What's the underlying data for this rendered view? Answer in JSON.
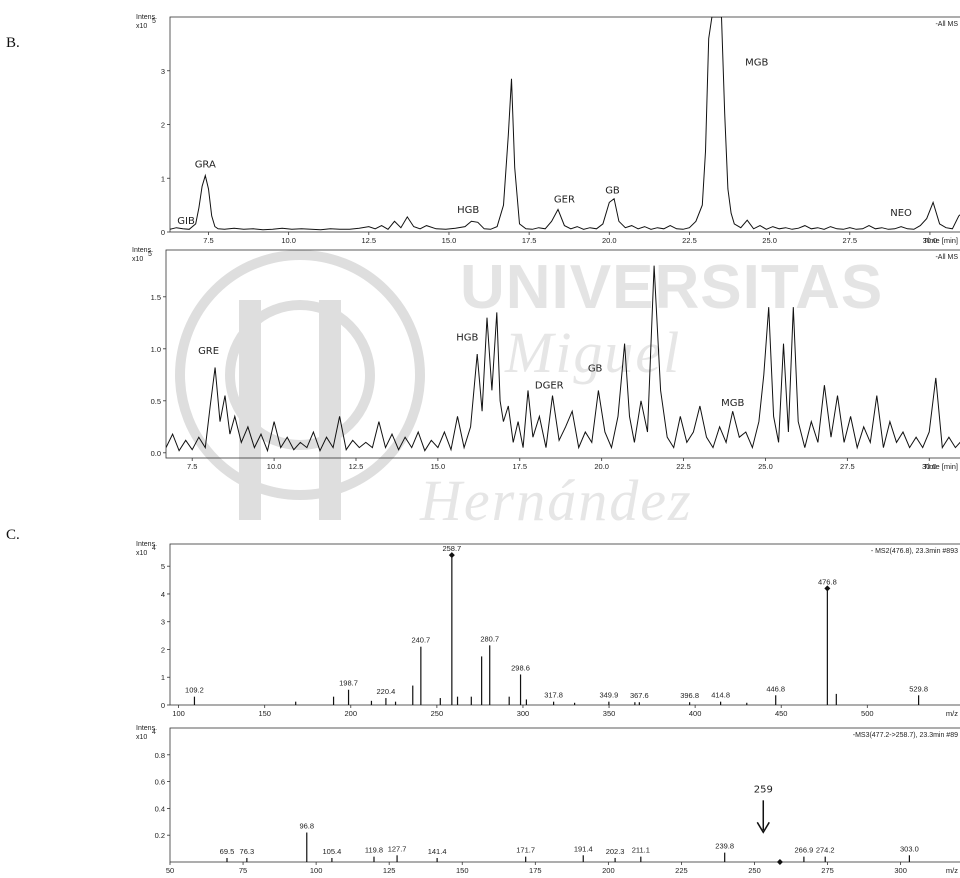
{
  "watermark": {
    "line1": "UNIVERSITAS",
    "line2": "Miguel",
    "line3": "Hernández",
    "seal_color": "#dddddd"
  },
  "panel_labels": {
    "b": "B.",
    "c": "C."
  },
  "chart_data": [
    {
      "type": "line",
      "intensity_label": "Intens.",
      "scale_label": "x10",
      "scale_exponent": "5",
      "trace_label": "-All MS",
      "x_label": "Time [min]",
      "xlim": [
        6.3,
        31.0
      ],
      "ylim": [
        0,
        4.0
      ],
      "x_ticks": [
        7.5,
        10.0,
        12.5,
        15.0,
        17.5,
        20.0,
        22.5,
        25.0,
        27.5,
        30.0
      ],
      "x_tick_labels": [
        "7.5",
        "10.0",
        "12.5",
        "15.0",
        "17.5",
        "20.0",
        "22.5",
        "25.0",
        "27.5",
        "30.0"
      ],
      "y_ticks": [
        0,
        1,
        2,
        3
      ],
      "y_tick_labels": [
        "0",
        "1",
        "2",
        "3"
      ],
      "x": [
        6.3,
        6.5,
        6.7,
        6.9,
        7.1,
        7.2,
        7.3,
        7.4,
        7.5,
        7.6,
        7.7,
        7.8,
        8.0,
        8.3,
        8.6,
        8.9,
        9.2,
        9.5,
        9.8,
        10.1,
        10.4,
        10.7,
        11.0,
        11.3,
        11.6,
        11.9,
        12.2,
        12.5,
        12.7,
        12.9,
        13.1,
        13.3,
        13.5,
        13.7,
        13.9,
        14.1,
        14.3,
        14.6,
        14.9,
        15.2,
        15.5,
        15.7,
        15.9,
        16.1,
        16.3,
        16.5,
        16.7,
        16.85,
        16.95,
        17.05,
        17.2,
        17.4,
        17.6,
        17.8,
        18.0,
        18.2,
        18.4,
        18.6,
        18.8,
        19.0,
        19.2,
        19.4,
        19.6,
        19.8,
        20.0,
        20.15,
        20.3,
        20.5,
        20.7,
        20.9,
        21.1,
        21.3,
        21.5,
        21.7,
        21.9,
        22.1,
        22.3,
        22.5,
        22.7,
        22.9,
        23.0,
        23.1,
        23.2,
        23.35,
        23.5,
        23.6,
        23.7,
        23.8,
        23.9,
        24.1,
        24.3,
        24.5,
        24.7,
        24.9,
        25.1,
        25.3,
        25.5,
        25.7,
        25.9,
        26.1,
        26.3,
        26.5,
        26.7,
        26.9,
        27.1,
        27.3,
        27.5,
        27.7,
        27.9,
        28.1,
        28.3,
        28.5,
        28.7,
        28.9,
        29.1,
        29.3,
        29.5,
        29.7,
        29.9,
        30.1,
        30.3,
        30.5,
        30.7,
        30.9,
        31.0
      ],
      "y": [
        0.05,
        0.08,
        0.06,
        0.05,
        0.15,
        0.45,
        0.85,
        1.05,
        0.8,
        0.3,
        0.1,
        0.06,
        0.05,
        0.07,
        0.05,
        0.06,
        0.04,
        0.05,
        0.07,
        0.05,
        0.06,
        0.05,
        0.04,
        0.06,
        0.05,
        0.05,
        0.07,
        0.1,
        0.06,
        0.12,
        0.05,
        0.2,
        0.08,
        0.28,
        0.1,
        0.06,
        0.12,
        0.06,
        0.05,
        0.07,
        0.1,
        0.2,
        0.18,
        0.06,
        0.05,
        0.1,
        0.5,
        1.8,
        2.85,
        1.2,
        0.15,
        0.06,
        0.05,
        0.08,
        0.06,
        0.2,
        0.42,
        0.12,
        0.06,
        0.1,
        0.05,
        0.08,
        0.06,
        0.15,
        0.55,
        0.62,
        0.2,
        0.08,
        0.12,
        0.06,
        0.1,
        0.05,
        0.08,
        0.06,
        0.12,
        0.06,
        0.05,
        0.08,
        0.2,
        0.5,
        1.5,
        3.6,
        4.0,
        4.0,
        4.0,
        2.2,
        0.8,
        0.35,
        0.15,
        0.08,
        0.22,
        0.06,
        0.12,
        0.05,
        0.1,
        0.06,
        0.08,
        0.05,
        0.07,
        0.12,
        0.06,
        0.08,
        0.05,
        0.1,
        0.06,
        0.05,
        0.08,
        0.05,
        0.06,
        0.12,
        0.06,
        0.08,
        0.05,
        0.06,
        0.1,
        0.06,
        0.05,
        0.12,
        0.25,
        0.55,
        0.15,
        0.08,
        0.06,
        0.3,
        0.35
      ],
      "peak_labels": [
        {
          "text": "GIB",
          "x": 6.8,
          "y": 0.15
        },
        {
          "text": "GRA",
          "x": 7.4,
          "y": 1.2
        },
        {
          "text": "HGB",
          "x": 15.6,
          "y": 0.35
        },
        {
          "text": "GER",
          "x": 18.6,
          "y": 0.55
        },
        {
          "text": "GB",
          "x": 20.1,
          "y": 0.72
        },
        {
          "text": "MGB",
          "x": 24.6,
          "y": 3.1
        },
        {
          "text": "NEO",
          "x": 29.1,
          "y": 0.3
        }
      ]
    },
    {
      "type": "line",
      "intensity_label": "Intens.",
      "scale_label": "x10",
      "scale_exponent": "5",
      "trace_label": "-All MS",
      "x_label": "Time [min]",
      "xlim": [
        6.7,
        31.0
      ],
      "ylim": [
        -0.05,
        1.95
      ],
      "x_ticks": [
        7.5,
        10.0,
        12.5,
        15.0,
        17.5,
        20.0,
        22.5,
        25.0,
        27.5,
        30.0
      ],
      "x_tick_labels": [
        "7.5",
        "10.0",
        "12.5",
        "15.0",
        "17.5",
        "20.0",
        "22.5",
        "25.0",
        "27.5",
        "30.0"
      ],
      "y_ticks": [
        0.0,
        0.5,
        1.0,
        1.5
      ],
      "y_tick_labels": [
        "0.0",
        "0.5",
        "1.0",
        "1.5"
      ],
      "x": [
        6.7,
        6.9,
        7.1,
        7.3,
        7.5,
        7.7,
        7.9,
        8.05,
        8.2,
        8.35,
        8.5,
        8.65,
        8.8,
        9.0,
        9.2,
        9.4,
        9.6,
        9.8,
        10.0,
        10.2,
        10.4,
        10.6,
        10.8,
        11.0,
        11.2,
        11.4,
        11.6,
        11.8,
        12.0,
        12.2,
        12.4,
        12.6,
        12.8,
        13.0,
        13.2,
        13.4,
        13.6,
        13.8,
        14.0,
        14.2,
        14.4,
        14.6,
        14.8,
        15.0,
        15.2,
        15.4,
        15.6,
        15.8,
        16.0,
        16.2,
        16.35,
        16.5,
        16.65,
        16.8,
        16.9,
        17.0,
        17.15,
        17.3,
        17.45,
        17.6,
        17.75,
        17.9,
        18.1,
        18.3,
        18.5,
        18.7,
        18.9,
        19.1,
        19.3,
        19.5,
        19.7,
        19.9,
        20.1,
        20.3,
        20.5,
        20.7,
        20.85,
        21.0,
        21.2,
        21.4,
        21.6,
        21.8,
        22.0,
        22.2,
        22.4,
        22.6,
        22.8,
        23.0,
        23.2,
        23.4,
        23.6,
        23.8,
        24.0,
        24.2,
        24.4,
        24.6,
        24.8,
        24.95,
        25.1,
        25.25,
        25.4,
        25.55,
        25.7,
        25.85,
        26.0,
        26.2,
        26.4,
        26.6,
        26.8,
        27.0,
        27.2,
        27.4,
        27.6,
        27.8,
        28.0,
        28.2,
        28.4,
        28.6,
        28.8,
        29.0,
        29.2,
        29.4,
        29.6,
        29.8,
        30.0,
        30.2,
        30.4,
        30.6,
        30.8,
        31.0
      ],
      "y": [
        0.05,
        0.18,
        0.02,
        0.12,
        0.03,
        0.15,
        0.05,
        0.45,
        0.82,
        0.3,
        0.55,
        0.18,
        0.35,
        0.1,
        0.25,
        0.05,
        0.18,
        0.02,
        0.3,
        0.05,
        0.15,
        0.03,
        0.1,
        0.05,
        0.2,
        0.02,
        0.15,
        0.05,
        0.35,
        0.03,
        0.12,
        0.05,
        0.1,
        0.05,
        0.3,
        0.05,
        0.18,
        0.03,
        0.15,
        0.05,
        0.2,
        0.02,
        0.12,
        0.05,
        0.2,
        0.03,
        0.35,
        0.05,
        0.25,
        0.95,
        0.4,
        1.3,
        0.6,
        1.35,
        0.5,
        0.3,
        0.45,
        0.1,
        0.3,
        0.05,
        0.6,
        0.15,
        0.35,
        0.05,
        0.55,
        0.12,
        0.25,
        0.4,
        0.05,
        0.2,
        0.1,
        0.6,
        0.2,
        0.05,
        0.35,
        1.05,
        0.35,
        0.1,
        0.5,
        0.2,
        1.8,
        0.6,
        0.15,
        0.05,
        0.35,
        0.1,
        0.2,
        0.45,
        0.15,
        0.05,
        0.25,
        0.1,
        0.4,
        0.15,
        0.2,
        0.05,
        0.3,
        0.75,
        1.4,
        0.35,
        0.1,
        1.05,
        0.2,
        1.4,
        0.3,
        0.05,
        0.3,
        0.1,
        0.65,
        0.15,
        0.55,
        0.1,
        0.35,
        0.05,
        0.25,
        0.1,
        0.55,
        0.05,
        0.3,
        0.1,
        0.2,
        0.05,
        0.15,
        0.05,
        0.2,
        0.72,
        0.05,
        0.15,
        0.05,
        0.12
      ],
      "peak_labels": [
        {
          "text": "GRE",
          "x": 8.0,
          "y": 0.95
        },
        {
          "text": "HGB",
          "x": 15.9,
          "y": 1.08
        },
        {
          "text": "DGER",
          "x": 18.4,
          "y": 0.62
        },
        {
          "text": "GB",
          "x": 19.8,
          "y": 0.78
        },
        {
          "text": "MGB",
          "x": 24.0,
          "y": 0.45
        }
      ]
    },
    {
      "type": "bar",
      "intensity_label": "Intens.",
      "scale_label": "x10",
      "scale_exponent": "4",
      "trace_label": "- MS2(476.8), 23.3min #893",
      "x_label": "m/z",
      "xlim": [
        95,
        555
      ],
      "ylim": [
        0,
        5.8
      ],
      "x_ticks": [
        100,
        150,
        200,
        250,
        300,
        350,
        400,
        450,
        500
      ],
      "x_tick_labels": [
        "100",
        "150",
        "200",
        "250",
        "300",
        "350",
        "400",
        "450",
        "500"
      ],
      "y_ticks": [
        0,
        1,
        2,
        3,
        4,
        5
      ],
      "y_tick_labels": [
        "0",
        "1",
        "2",
        "3",
        "4",
        "5"
      ],
      "peaks": [
        {
          "mz": 109.2,
          "value": 0.3,
          "label": "109.2"
        },
        {
          "mz": 168,
          "value": 0.12,
          "label": ""
        },
        {
          "mz": 190,
          "value": 0.3,
          "label": ""
        },
        {
          "mz": 198.7,
          "value": 0.55,
          "label": "198.7"
        },
        {
          "mz": 212,
          "value": 0.15,
          "label": ""
        },
        {
          "mz": 220.4,
          "value": 0.25,
          "label": "220.4"
        },
        {
          "mz": 226,
          "value": 0.12,
          "label": ""
        },
        {
          "mz": 236,
          "value": 0.7,
          "label": ""
        },
        {
          "mz": 240.7,
          "value": 2.1,
          "label": "240.7"
        },
        {
          "mz": 252,
          "value": 0.25,
          "label": ""
        },
        {
          "mz": 258.7,
          "value": 5.4,
          "label": "258.7"
        },
        {
          "mz": 262,
          "value": 0.3,
          "label": ""
        },
        {
          "mz": 270,
          "value": 0.3,
          "label": ""
        },
        {
          "mz": 276,
          "value": 1.75,
          "label": ""
        },
        {
          "mz": 280.7,
          "value": 2.15,
          "label": "280.7"
        },
        {
          "mz": 292,
          "value": 0.3,
          "label": ""
        },
        {
          "mz": 298.6,
          "value": 1.1,
          "label": "298.6"
        },
        {
          "mz": 302,
          "value": 0.2,
          "label": ""
        },
        {
          "mz": 317.8,
          "value": 0.12,
          "label": "317.8"
        },
        {
          "mz": 330,
          "value": 0.08,
          "label": ""
        },
        {
          "mz": 349.9,
          "value": 0.12,
          "label": "349.9"
        },
        {
          "mz": 365,
          "value": 0.1,
          "label": ""
        },
        {
          "mz": 367.6,
          "value": 0.1,
          "label": "367.6"
        },
        {
          "mz": 396.8,
          "value": 0.1,
          "label": "396.8"
        },
        {
          "mz": 414.8,
          "value": 0.12,
          "label": "414.8"
        },
        {
          "mz": 430,
          "value": 0.08,
          "label": ""
        },
        {
          "mz": 446.8,
          "value": 0.35,
          "label": "446.8"
        },
        {
          "mz": 476.8,
          "value": 4.2,
          "label": "476.8"
        },
        {
          "mz": 482,
          "value": 0.4,
          "label": ""
        },
        {
          "mz": 529.8,
          "value": 0.35,
          "label": "529.8"
        }
      ],
      "markers": [
        258.7,
        476.8
      ]
    },
    {
      "type": "bar",
      "intensity_label": "Intens.",
      "scale_label": "x10",
      "scale_exponent": "4",
      "trace_label": "-MS3(477.2->258.7), 23.3min #89",
      "x_label": "m/z",
      "xlim": [
        50,
        321
      ],
      "ylim": [
        0,
        1.0
      ],
      "x_ticks": [
        50,
        75,
        100,
        125,
        150,
        175,
        200,
        225,
        250,
        275,
        300
      ],
      "x_tick_labels": [
        "50",
        "75",
        "100",
        "125",
        "150",
        "175",
        "200",
        "225",
        "250",
        "275",
        "300"
      ],
      "y_ticks": [
        0.2,
        0.4,
        0.6,
        0.8
      ],
      "y_tick_labels": [
        "0.2",
        "0.4",
        "0.6",
        "0.8"
      ],
      "peaks": [
        {
          "mz": 69.5,
          "value": 0.03,
          "label": "69.5"
        },
        {
          "mz": 76.3,
          "value": 0.03,
          "label": "76.3"
        },
        {
          "mz": 96.8,
          "value": 0.22,
          "label": "96.8"
        },
        {
          "mz": 105.4,
          "value": 0.03,
          "label": "105.4"
        },
        {
          "mz": 119.8,
          "value": 0.04,
          "label": "119.8"
        },
        {
          "mz": 127.7,
          "value": 0.05,
          "label": "127.7"
        },
        {
          "mz": 141.4,
          "value": 0.03,
          "label": "141.4"
        },
        {
          "mz": 171.7,
          "value": 0.04,
          "label": "171.7"
        },
        {
          "mz": 191.4,
          "value": 0.05,
          "label": "191.4"
        },
        {
          "mz": 202.3,
          "value": 0.03,
          "label": "202.3"
        },
        {
          "mz": 211.1,
          "value": 0.04,
          "label": "211.1"
        },
        {
          "mz": 239.8,
          "value": 0.07,
          "label": "239.8"
        },
        {
          "mz": 266.9,
          "value": 0.04,
          "label": "266.9"
        },
        {
          "mz": 274.2,
          "value": 0.04,
          "label": "274.2"
        },
        {
          "mz": 303.0,
          "value": 0.05,
          "label": "303.0"
        }
      ],
      "markers": [
        258.7
      ],
      "annotation": {
        "text": "259",
        "x": 253,
        "y": 0.52
      }
    }
  ]
}
